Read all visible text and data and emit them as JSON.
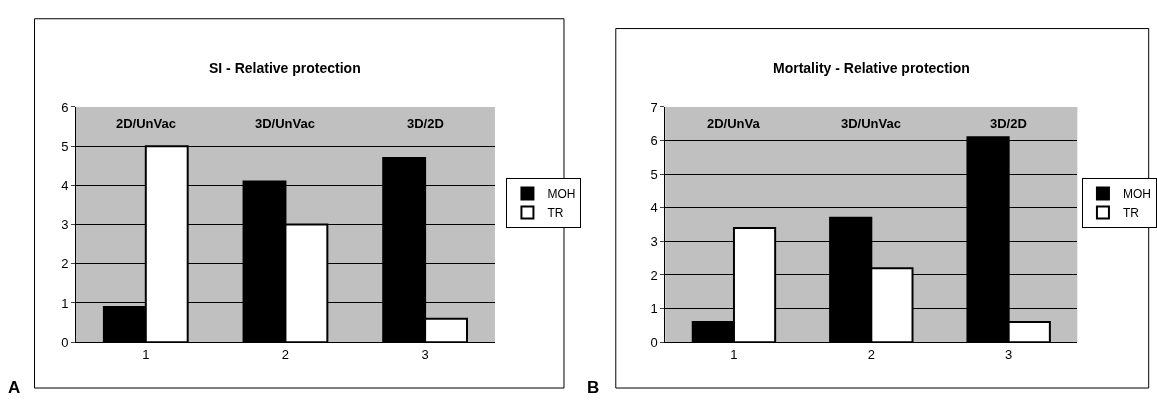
{
  "chart_data": [
    {
      "type": "bar",
      "title": "SI - Relative protection",
      "categories": [
        "1",
        "2",
        "3"
      ],
      "series": [
        {
          "name": "MOH",
          "color": "#000000",
          "values": [
            0.9,
            4.1,
            4.7
          ]
        },
        {
          "name": "TR",
          "color": "#ffffff",
          "values": [
            5.0,
            3.0,
            0.6
          ]
        }
      ],
      "ylim": [
        0,
        6
      ],
      "yticks": [
        0,
        1,
        2,
        3,
        4,
        5,
        6
      ],
      "grid": "y",
      "legend": "right",
      "annotations": [
        "2D/UnVac",
        "3D/UnVac",
        "3D/2D",
        "A"
      ]
    },
    {
      "type": "bar",
      "title": "Mortality - Relative protection",
      "categories": [
        "1",
        "2",
        "3"
      ],
      "series": [
        {
          "name": "MOH",
          "color": "#000000",
          "values": [
            0.6,
            3.7,
            6.1
          ]
        },
        {
          "name": "TR",
          "color": "#ffffff",
          "values": [
            3.4,
            2.2,
            0.6
          ]
        }
      ],
      "ylim": [
        0,
        7
      ],
      "yticks": [
        0,
        1,
        2,
        3,
        4,
        5,
        6,
        7
      ],
      "grid": "y",
      "legend": "right",
      "annotations": [
        "2D/UnVa",
        "3D/UnVac",
        "3D/2D",
        "B"
      ]
    }
  ]
}
